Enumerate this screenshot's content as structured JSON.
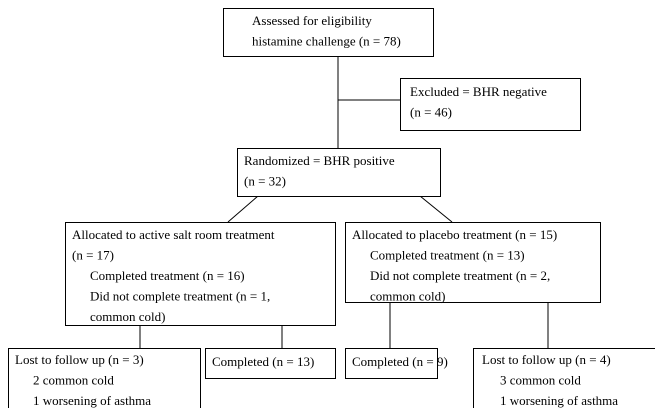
{
  "nodes": [
    {
      "lines": [
        "Assessed for eligibility",
        "histamine challenge (n = 78)"
      ]
    },
    {
      "lines": [
        "Excluded = BHR negative",
        "(n = 46)"
      ]
    },
    {
      "lines": [
        "Randomized = BHR positive",
        "(n = 32)"
      ]
    },
    {
      "lines": [
        "Allocated to active salt room treatment",
        "(n = 17)",
        "Completed treatment (n = 16)",
        "Did not complete treatment (n = 1,",
        "common cold)"
      ]
    },
    {
      "lines": [
        "Allocated to placebo treatment (n = 15)",
        "Completed treatment (n = 13)",
        "Did not complete treatment (n = 2,",
        "common cold)"
      ]
    },
    {
      "lines": [
        "Lost to follow up (n = 3)",
        "2 common cold",
        "1 worsening of asthma"
      ]
    },
    {
      "lines": [
        "Completed (n = 13)"
      ]
    },
    {
      "lines": [
        "Completed (n = 9)"
      ]
    },
    {
      "lines": [
        "Lost to follow up (n = 4)",
        "3 common cold",
        "1 worsening of asthma"
      ]
    }
  ]
}
